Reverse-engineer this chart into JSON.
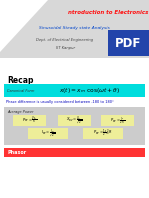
{
  "title_text": "ntroduction to Electronics",
  "subtitle_text": "Sinusoidal Steady state Analysis",
  "dept_text": "Dept. of Electrical Engineering",
  "inst_text": "IIT Kanpur",
  "recap_text": "Recap",
  "canonical_label": "Canonical Form",
  "phase_note": "Phase difference is usually considered between -180 to 180°",
  "avg_power_label": "Average Power",
  "phasor_label": "Phasor",
  "bg_color": "#ffffff",
  "header_bg": "#d8d8d8",
  "title_color": "#ff1111",
  "subtitle_color": "#0044cc",
  "dept_color": "#444444",
  "recap_color": "#000000",
  "canonical_box_color": "#00dddd",
  "phase_color": "#0000bb",
  "avg_box_color": "#cccccc",
  "phasor_box_color": "#ff3333",
  "formula_box_color": "#eeee99",
  "pdf_box_color": "#2244aa",
  "white": "#ffffff"
}
